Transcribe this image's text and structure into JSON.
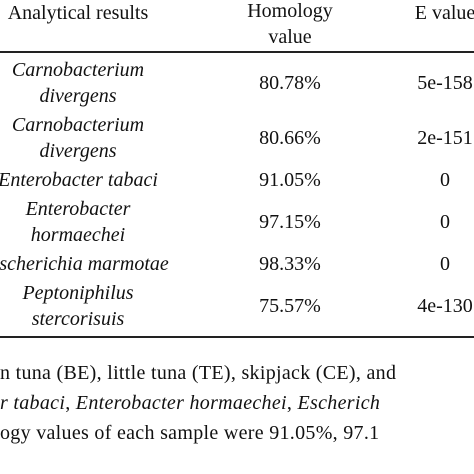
{
  "table": {
    "header": [
      [
        "Analytical results"
      ],
      [
        "Homology",
        "value"
      ],
      [
        "E value"
      ]
    ],
    "rows": [
      [
        [
          "Carnobacterium",
          "divergens"
        ],
        [
          "80.78%"
        ],
        [
          "5e-158"
        ]
      ],
      [
        [
          "Carnobacterium",
          "divergens"
        ],
        [
          "80.66%"
        ],
        [
          "2e-151"
        ]
      ],
      [
        [
          "Enterobacter tabaci"
        ],
        [
          "91.05%"
        ],
        [
          "0"
        ]
      ],
      [
        [
          "Enterobacter",
          "hormaechei"
        ],
        [
          "97.15%"
        ],
        [
          "0"
        ]
      ],
      [
        [
          "Escherichia marmotae"
        ],
        [
          "98.33%"
        ],
        [
          "0"
        ]
      ],
      [
        [
          "Peptoniphilus",
          "stercorisuis"
        ],
        [
          "75.57%"
        ],
        [
          "4e-130"
        ]
      ]
    ]
  },
  "caption": {
    "lines": [
      [
        {
          "text": "n tuna (BE), little tuna (TE), skipjack (CE), and",
          "italic": false
        }
      ],
      [
        {
          "text": "r tabaci",
          "italic": true
        },
        {
          "text": ", ",
          "italic": false
        },
        {
          "text": "Enterobacter hormaechei",
          "italic": true
        },
        {
          "text": ", ",
          "italic": false
        },
        {
          "text": "Escherich",
          "italic": true
        }
      ],
      [
        {
          "text": "ogy values of each sample were 91.05%, 97.1",
          "italic": false
        }
      ]
    ]
  }
}
